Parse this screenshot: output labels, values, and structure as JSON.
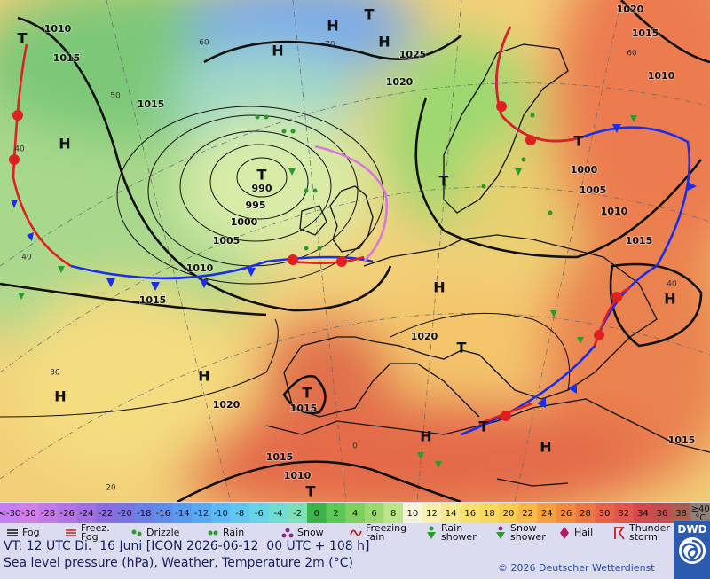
{
  "map": {
    "pressure_labels": [
      "1010",
      "1015",
      "1015",
      "990",
      "995",
      "1000",
      "1005",
      "1010",
      "1015",
      "1020",
      "1015",
      "1015",
      "1010",
      "1025",
      "1020",
      "1020",
      "1015",
      "1010",
      "1000",
      "1005",
      "1010",
      "1015",
      "1020",
      "1015"
    ],
    "centers": [
      "H",
      "T",
      "H",
      "H",
      "T",
      "H",
      "T",
      "T",
      "H",
      "T",
      "H",
      "T",
      "H",
      "H",
      "T",
      "H",
      "T",
      "H",
      "T"
    ],
    "temperature_labels": [
      "60",
      "50",
      "40",
      "40",
      "30",
      "20",
      "70",
      "60",
      "40",
      "0"
    ]
  },
  "colorbar": {
    "cells": [
      {
        "label": "<-30",
        "color": "#c77ef2"
      },
      {
        "label": "-30",
        "color": "#d080e8"
      },
      {
        "label": "-28",
        "color": "#c47ae6"
      },
      {
        "label": "-26",
        "color": "#b476e4"
      },
      {
        "label": "-24",
        "color": "#a070e0"
      },
      {
        "label": "-22",
        "color": "#8c6cde"
      },
      {
        "label": "-20",
        "color": "#7b74e0"
      },
      {
        "label": "-18",
        "color": "#6a80e4"
      },
      {
        "label": "-16",
        "color": "#5f8de8"
      },
      {
        "label": "-14",
        "color": "#5a9bee"
      },
      {
        "label": "-12",
        "color": "#5aaaf2"
      },
      {
        "label": "-10",
        "color": "#5cbaf4"
      },
      {
        "label": "-8",
        "color": "#60c8f0"
      },
      {
        "label": "-6",
        "color": "#66d4e6"
      },
      {
        "label": "-4",
        "color": "#70dcd2"
      },
      {
        "label": "-2",
        "color": "#7ee0b8"
      },
      {
        "label": "0",
        "color": "#3cb44a"
      },
      {
        "label": "2",
        "color": "#5cc858"
      },
      {
        "label": "4",
        "color": "#80d060"
      },
      {
        "label": "6",
        "color": "#9cd870"
      },
      {
        "label": "8",
        "color": "#bce488"
      },
      {
        "label": "10",
        "color": "#f4f4dc"
      },
      {
        "label": "12",
        "color": "#f8f0b0"
      },
      {
        "label": "14",
        "color": "#f8e890"
      },
      {
        "label": "16",
        "color": "#f8e070"
      },
      {
        "label": "18",
        "color": "#f8d860"
      },
      {
        "label": "20",
        "color": "#f8cc50"
      },
      {
        "label": "22",
        "color": "#f8b848"
      },
      {
        "label": "24",
        "color": "#f4a040"
      },
      {
        "label": "26",
        "color": "#f08c40"
      },
      {
        "label": "28",
        "color": "#ec7844"
      },
      {
        "label": "30",
        "color": "#e86448"
      },
      {
        "label": "32",
        "color": "#e0584c"
      },
      {
        "label": "34",
        "color": "#d04c4c"
      },
      {
        "label": "36",
        "color": "#c05050"
      },
      {
        "label": "38",
        "color": "#a86050"
      },
      {
        "label": "≥40",
        "color": "#908078"
      }
    ],
    "unit": "°C"
  },
  "legend": {
    "items": [
      "Fog",
      "Freez. Fog",
      "Drizzle",
      "Rain",
      "Snow",
      "Freezing rain",
      "Rain shower",
      "Snow shower",
      "Hail",
      "Thunder storm"
    ]
  },
  "footer": {
    "valid_time": "VT: 12 UTC Di.  16 Juni [ICON 2026-06-12  00 UTC + 108 h]",
    "description": "Sea level pressure (hPa), Weather, Temperature 2m (°C)",
    "copyright": "© 2026 Deutscher Wetterdienst",
    "logo": "DWD"
  }
}
